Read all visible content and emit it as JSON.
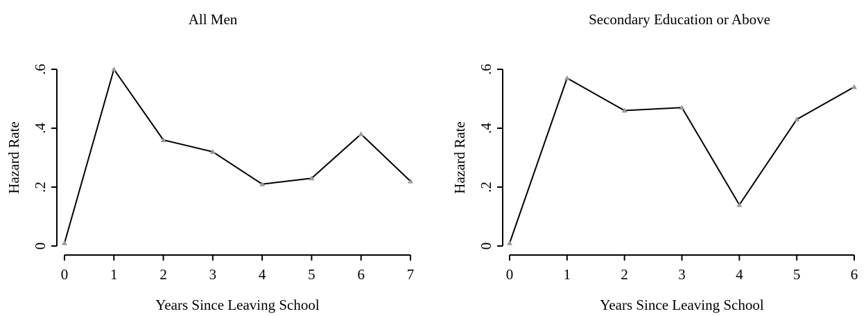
{
  "chart_data": [
    {
      "type": "line",
      "title": "All Men",
      "x_label": "Years Since Leaving School",
      "y_label": "Hazard Rate",
      "x": [
        0,
        1,
        2,
        3,
        4,
        5,
        6,
        7
      ],
      "series": [
        {
          "color": "#000000",
          "marker_color": "#999999",
          "values": [
            0.01,
            0.6,
            0.36,
            0.32,
            0.21,
            0.23,
            0.38,
            0.22
          ]
        }
      ],
      "xlim": [
        0,
        7
      ],
      "xticks": [
        0,
        1,
        2,
        3,
        4,
        5,
        6,
        7
      ],
      "ylim": [
        0,
        0.6
      ],
      "yticks": [
        0,
        {
          "value": 0.2,
          "label": ".2"
        },
        {
          "value": 0.4,
          "label": ".4"
        },
        {
          "value": 0.6,
          "label": ".6"
        }
      ]
    },
    {
      "type": "line",
      "title": "Secondary Education or Above",
      "x_label": "Years Since Leaving School",
      "y_label": "Hazard Rate",
      "x": [
        0,
        1,
        2,
        3,
        4,
        5,
        6
      ],
      "series": [
        {
          "color": "#000000",
          "marker_color": "#999999",
          "values": [
            0.01,
            0.57,
            0.46,
            0.47,
            0.14,
            0.43,
            0.54
          ]
        }
      ],
      "xlim": [
        0,
        6
      ],
      "xticks": [
        0,
        1,
        2,
        3,
        4,
        5,
        6
      ],
      "ylim": [
        0,
        0.6
      ],
      "yticks": [
        0,
        {
          "value": 0.2,
          "label": ".2"
        },
        {
          "value": 0.4,
          "label": ".4"
        },
        {
          "value": 0.6,
          "label": ".6"
        }
      ]
    }
  ]
}
